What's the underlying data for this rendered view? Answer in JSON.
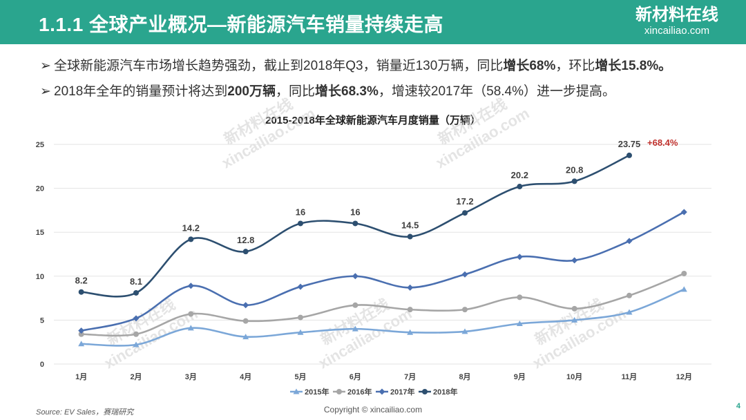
{
  "header": {
    "title": "1.1.1 全球产业概况—新能源汽车销量持续走高",
    "brand_cn": "新材料在线",
    "brand_en": "xincailiao.com"
  },
  "bullets": {
    "arrow": "➢",
    "b1": {
      "p1": "全球新能源汽车市场增长趋势强劲，截止到2018年Q3，销量近130万辆，同比",
      "p2": "增长68%",
      "p3": "，环比",
      "p4": "增长15.8%。"
    },
    "b2": {
      "p1": "2018年全年的销量预计将达到",
      "p2": "200万辆",
      "p3": "，同比",
      "p4": "增长68.3%",
      "p5": "，增速较2017年（58.4%）进一步提高。"
    }
  },
  "chart_data": {
    "type": "line",
    "title": "2015-2018年全球新能源汽车月度销量（万辆）",
    "categories": [
      "1月",
      "2月",
      "3月",
      "4月",
      "5月",
      "6月",
      "7月",
      "8月",
      "9月",
      "10月",
      "11月",
      "12月"
    ],
    "ylim": [
      0,
      25
    ],
    "yticks": [
      0,
      5,
      10,
      15,
      20,
      25
    ],
    "grid": true,
    "legend": "bottom",
    "series": [
      {
        "name": "2015年",
        "color": "#7ba7d8",
        "marker": "triangle",
        "values": [
          2.3,
          2.2,
          4.1,
          3.1,
          3.6,
          4.0,
          3.6,
          3.7,
          4.6,
          5.0,
          5.9,
          8.5
        ]
      },
      {
        "name": "2016年",
        "color": "#a6a6a6",
        "marker": "circle",
        "values": [
          3.4,
          3.4,
          5.7,
          4.9,
          5.3,
          6.7,
          6.2,
          6.2,
          7.6,
          6.3,
          7.8,
          10.3
        ]
      },
      {
        "name": "2017年",
        "color": "#4a6fb0",
        "marker": "diamond",
        "values": [
          3.8,
          5.2,
          8.9,
          6.7,
          8.8,
          10.0,
          8.7,
          10.2,
          12.2,
          11.8,
          14.0,
          17.3
        ]
      },
      {
        "name": "2018年",
        "color": "#2d4f70",
        "marker": "circle",
        "values": [
          8.2,
          8.1,
          14.2,
          12.8,
          16,
          16,
          14.5,
          17.2,
          20.2,
          20.8,
          23.75,
          null
        ],
        "labels": [
          "8.2",
          "8.1",
          "14.2",
          "12.8",
          "16",
          "16",
          "14.5",
          "17.2",
          "20.2",
          "20.8",
          "23.75",
          ""
        ]
      }
    ],
    "annotation": {
      "text": "+68.4%",
      "color": "#c0302c"
    }
  },
  "watermark": {
    "cn": "新材料在线",
    "en": "xincailiao.com"
  },
  "footer": {
    "source": "Source:  EV Sales，赛瑞研究",
    "copyright": "Copyright © xincailiao.com",
    "page": "4"
  }
}
